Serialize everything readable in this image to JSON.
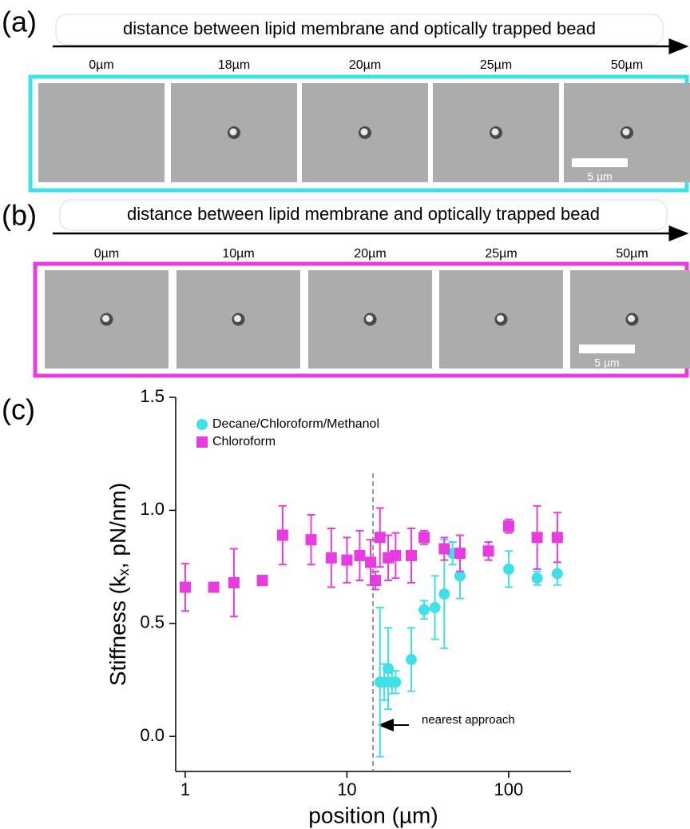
{
  "panels": [
    {
      "label": "(a)",
      "arrow_text": "distance between lipid membrane and optically trapped bead",
      "distances": [
        "0µm",
        "18µm",
        "20µm",
        "25µm",
        "50µm"
      ],
      "scale_bar": "5 µm"
    },
    {
      "label": "(b)",
      "arrow_text": "distance between lipid membrane and optically trapped bead",
      "distances": [
        "0µm",
        "10µm",
        "20µm",
        "25µm",
        "50µm"
      ],
      "scale_bar": "5 µm"
    }
  ],
  "chart_data": {
    "label": "(c)",
    "type": "scatter",
    "x_scale": "log",
    "xlabel": "position (µm)",
    "ylabel": [
      "Stiffness (k",
      "x",
      ", pN/nm)"
    ],
    "xlim": [
      0.873,
      243
    ],
    "ylim": [
      -0.155,
      1.5
    ],
    "xticks": [
      1,
      10,
      100
    ],
    "yticks": [
      {
        "value": 0,
        "label": "0.0"
      },
      {
        "value": 0.5,
        "label": "0.5"
      },
      {
        "value": 1,
        "label": "1.0"
      },
      {
        "value": 1.5,
        "label": "1.5"
      }
    ],
    "vline": 14.5,
    "annotation": "nearest approach",
    "series": [
      {
        "name": "Decane/Chloroform/Methanol",
        "color": "#40e0e8",
        "marker": "circle",
        "x": [
          16,
          17,
          18,
          19,
          20,
          25,
          30,
          35,
          40,
          45,
          50,
          100,
          150,
          200
        ],
        "values": [
          0.24,
          0.24,
          0.3,
          0.24,
          0.24,
          0.34,
          0.56,
          0.57,
          0.63,
          0.81,
          0.71,
          0.74,
          0.7,
          0.72
        ],
        "errors": [
          0.33,
          0.08,
          0.18,
          0.05,
          0.05,
          0.14,
          0.04,
          0.14,
          0.24,
          0.05,
          0.1,
          0.08,
          0.03,
          0.05
        ]
      },
      {
        "name": "Chloroform",
        "color": "#e83ce0",
        "marker": "square",
        "x": [
          1,
          1.5,
          2,
          3,
          4,
          6,
          8,
          10,
          12,
          14,
          15,
          16,
          18,
          20,
          25,
          30,
          40,
          50,
          75,
          100,
          150,
          200
        ],
        "values": [
          0.66,
          0.66,
          0.68,
          0.69,
          0.89,
          0.87,
          0.79,
          0.78,
          0.8,
          0.77,
          0.69,
          0.88,
          0.79,
          0.8,
          0.8,
          0.88,
          0.83,
          0.81,
          0.82,
          0.93,
          0.88,
          0.88
        ],
        "errors": [
          0.105,
          0.01,
          0.15,
          0.01,
          0.13,
          0.11,
          0.13,
          0.1,
          0.11,
          0.1,
          0.04,
          0.13,
          0.1,
          0.1,
          0.12,
          0.03,
          0.05,
          0.08,
          0.04,
          0.03,
          0.14,
          0.11
        ]
      }
    ]
  }
}
